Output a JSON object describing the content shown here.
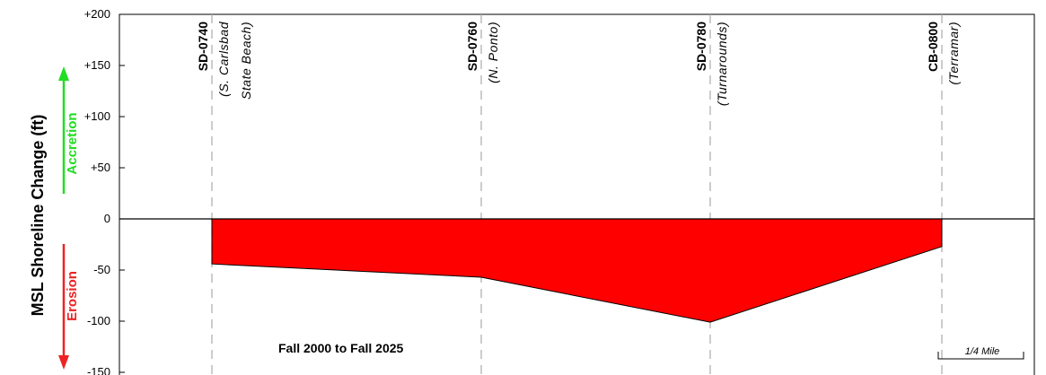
{
  "chart_data": {
    "type": "area",
    "ylabel": "MSL Shoreline Change (ft)",
    "ylim": [
      -150,
      200
    ],
    "yticks": [
      {
        "value": 200,
        "label": "+200"
      },
      {
        "value": 150,
        "label": "+150"
      },
      {
        "value": 100,
        "label": "+100"
      },
      {
        "value": 50,
        "label": "+50"
      },
      {
        "value": 0,
        "label": "0"
      },
      {
        "value": -50,
        "label": "-50"
      },
      {
        "value": -100,
        "label": "-100"
      },
      {
        "value": -150,
        "label": "-150"
      }
    ],
    "accretion_label": "Accretion",
    "erosion_label": "Erosion",
    "annotation": "Fall 2000 to Fall 2025",
    "scale_label": "1/4 Mile",
    "grid": false,
    "fill_color": "#ff0000",
    "accretion_color": "#22dd22",
    "erosion_color": "#ee2222",
    "transects": [
      {
        "id": "SD-0740",
        "name_lines": [
          "(S. Carlsbad",
          "State Beach)"
        ],
        "change": -44
      },
      {
        "id": "SD-0760",
        "name_lines": [
          "(N. Ponto)"
        ],
        "change": -57
      },
      {
        "id": "SD-0780",
        "name_lines": [
          "(Turnarounds)"
        ],
        "change": -101
      },
      {
        "id": "CB-0800",
        "name_lines": [
          "(Terramar)"
        ],
        "change": -27
      }
    ]
  }
}
